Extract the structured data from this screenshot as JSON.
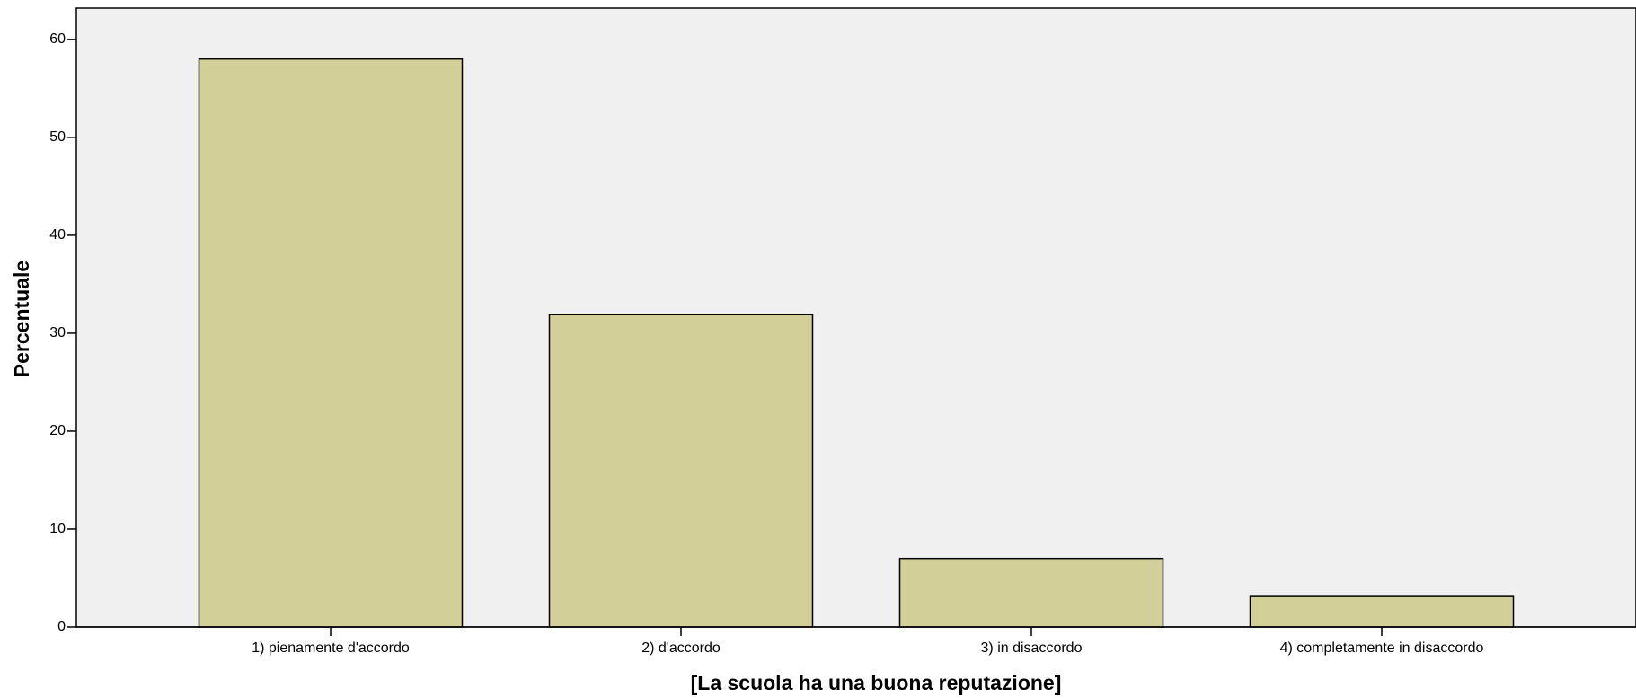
{
  "chart_data": {
    "type": "bar",
    "x_label": "[La scuola ha una buona reputazione]",
    "y_label": "Percentuale",
    "categories": [
      "1) pienamente d'accordo",
      "2) d'accordo",
      "3) in disaccordo",
      "4) completamente in disaccordo"
    ],
    "values": [
      58.0,
      31.9,
      7.0,
      3.2
    ],
    "color": "#d3cf98",
    "ylim": [
      0,
      63.2
    ],
    "yticks": [
      0,
      10,
      20,
      30,
      40,
      50,
      60
    ]
  }
}
